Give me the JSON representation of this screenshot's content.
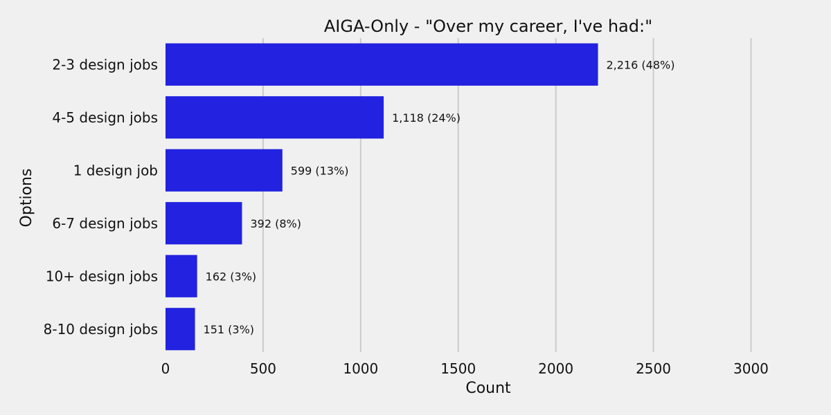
{
  "chart_data": {
    "type": "bar",
    "orientation": "horizontal",
    "title": "AIGA-Only - \"Over my career, I've had:\"",
    "xlabel": "Count",
    "ylabel": "Options",
    "categories": [
      "2-3 design jobs",
      "4-5 design jobs",
      "1 design job",
      "6-7 design jobs",
      "10+ design jobs",
      "8-10 design jobs"
    ],
    "values": [
      2216,
      1118,
      599,
      392,
      162,
      151
    ],
    "data_labels": [
      "2,216 (48%)",
      "1,118 (24%)",
      "599 (13%)",
      "392 (8%)",
      "162 (3%)",
      "151 (3%)"
    ],
    "xlim": [
      0,
      3300
    ],
    "xticks": [
      0,
      500,
      1000,
      1500,
      2000,
      2500,
      3000
    ],
    "grid": true,
    "bar_color": "#2222e0"
  }
}
